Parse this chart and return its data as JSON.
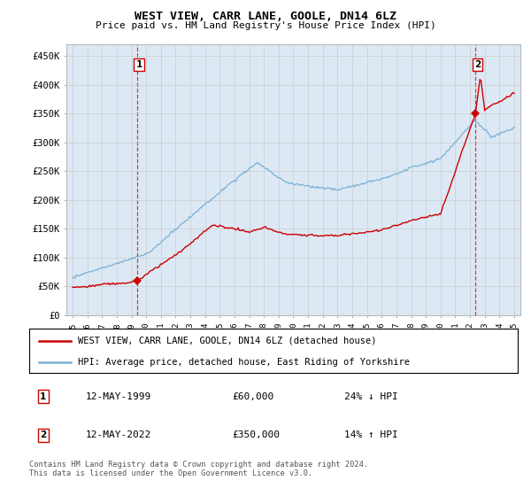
{
  "title": "WEST VIEW, CARR LANE, GOOLE, DN14 6LZ",
  "subtitle": "Price paid vs. HM Land Registry's House Price Index (HPI)",
  "ylim": [
    0,
    470000
  ],
  "yticks": [
    0,
    50000,
    100000,
    150000,
    200000,
    250000,
    300000,
    350000,
    400000,
    450000
  ],
  "ytick_labels": [
    "£0",
    "£50K",
    "£100K",
    "£150K",
    "£200K",
    "£250K",
    "£300K",
    "£350K",
    "£400K",
    "£450K"
  ],
  "property_color": "#cc0000",
  "hpi_color": "#7bafd4",
  "hpi_fill_color": "#dce9f5",
  "sale1_date_label": "12-MAY-1999",
  "sale1_price_label": "£60,000",
  "sale1_pct_label": "24% ↓ HPI",
  "sale2_date_label": "12-MAY-2022",
  "sale2_price_label": "£350,000",
  "sale2_pct_label": "14% ↑ HPI",
  "legend_property": "WEST VIEW, CARR LANE, GOOLE, DN14 6LZ (detached house)",
  "legend_hpi": "HPI: Average price, detached house, East Riding of Yorkshire",
  "footer": "Contains HM Land Registry data © Crown copyright and database right 2024.\nThis data is licensed under the Open Government Licence v3.0.",
  "sale1_year": 1999.36,
  "sale1_value": 60000,
  "sale2_year": 2022.36,
  "sale2_value": 350000,
  "background_color": "#ffffff",
  "grid_color": "#cccccc"
}
